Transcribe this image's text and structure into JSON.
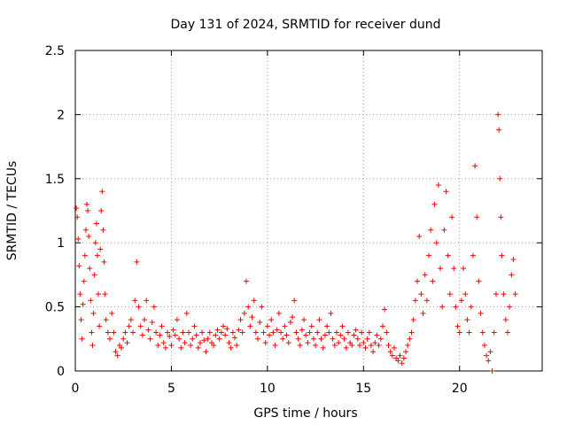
{
  "chart_data": {
    "type": "scatter",
    "title": "Day 131 of 2024, SRMTID for receiver dund",
    "xlabel": "GPS time / hours",
    "ylabel": "SRMTID / TECUs",
    "xlim": [
      0,
      24.3
    ],
    "ylim": [
      0,
      2.5
    ],
    "xticks": [
      0,
      5,
      10,
      15,
      20
    ],
    "yticks": [
      0,
      0.5,
      1,
      1.5,
      2,
      2.5
    ],
    "xtick_labels": [
      "0",
      "5",
      "10",
      "15",
      "20"
    ],
    "ytick_labels": [
      "0",
      "0.5",
      "1",
      "1.5",
      "2",
      "2.5"
    ],
    "grid": true,
    "marker": "plus",
    "series": [
      {
        "name": "SRMTID",
        "color": "#ff0000",
        "points": [
          [
            0.05,
            1.27
          ],
          [
            0.1,
            1.2
          ],
          [
            0.15,
            1.03
          ],
          [
            0.2,
            0.82
          ],
          [
            0.25,
            0.6
          ],
          [
            0.3,
            0.4
          ],
          [
            0.35,
            0.25
          ],
          [
            0.4,
            0.52
          ],
          [
            0.45,
            0.7
          ],
          [
            0.5,
            0.9
          ],
          [
            0.55,
            1.1
          ],
          [
            0.6,
            1.3
          ],
          [
            0.65,
            1.25
          ],
          [
            0.7,
            1.05
          ],
          [
            0.75,
            0.8
          ],
          [
            0.8,
            0.55
          ],
          [
            0.85,
            0.3
          ],
          [
            0.9,
            0.2
          ],
          [
            0.95,
            0.45
          ],
          [
            1.0,
            0.75
          ],
          [
            1.05,
            1.0
          ],
          [
            1.1,
            1.15
          ],
          [
            1.15,
            0.9
          ],
          [
            1.2,
            0.6
          ],
          [
            1.25,
            0.35
          ],
          [
            1.3,
            0.95
          ],
          [
            1.35,
            1.25
          ],
          [
            1.4,
            1.4
          ],
          [
            1.45,
            1.1
          ],
          [
            1.5,
            0.85
          ],
          [
            1.55,
            0.6
          ],
          [
            1.6,
            0.4
          ],
          [
            1.7,
            0.3
          ],
          [
            1.8,
            0.25
          ],
          [
            1.9,
            0.45
          ],
          [
            2.0,
            0.3
          ],
          [
            2.1,
            0.15
          ],
          [
            2.2,
            0.12
          ],
          [
            2.3,
            0.2
          ],
          [
            2.4,
            0.18
          ],
          [
            2.5,
            0.25
          ],
          [
            2.6,
            0.3
          ],
          [
            2.7,
            0.22
          ],
          [
            2.8,
            0.35
          ],
          [
            2.9,
            0.4
          ],
          [
            3.0,
            0.3
          ],
          [
            3.1,
            0.55
          ],
          [
            3.2,
            0.85
          ],
          [
            3.3,
            0.5
          ],
          [
            3.4,
            0.35
          ],
          [
            3.5,
            0.28
          ],
          [
            3.6,
            0.4
          ],
          [
            3.7,
            0.55
          ],
          [
            3.8,
            0.32
          ],
          [
            3.9,
            0.25
          ],
          [
            4.0,
            0.38
          ],
          [
            4.1,
            0.5
          ],
          [
            4.2,
            0.3
          ],
          [
            4.3,
            0.2
          ],
          [
            4.4,
            0.28
          ],
          [
            4.5,
            0.35
          ],
          [
            4.6,
            0.22
          ],
          [
            4.7,
            0.18
          ],
          [
            4.8,
            0.3
          ],
          [
            4.9,
            0.27
          ],
          [
            5.0,
            0.2
          ],
          [
            5.1,
            0.32
          ],
          [
            5.2,
            0.28
          ],
          [
            5.3,
            0.4
          ],
          [
            5.4,
            0.25
          ],
          [
            5.5,
            0.18
          ],
          [
            5.6,
            0.3
          ],
          [
            5.7,
            0.22
          ],
          [
            5.8,
            0.45
          ],
          [
            5.9,
            0.3
          ],
          [
            6.0,
            0.2
          ],
          [
            6.1,
            0.25
          ],
          [
            6.2,
            0.35
          ],
          [
            6.3,
            0.28
          ],
          [
            6.4,
            0.18
          ],
          [
            6.5,
            0.22
          ],
          [
            6.6,
            0.3
          ],
          [
            6.7,
            0.24
          ],
          [
            6.8,
            0.15
          ],
          [
            6.9,
            0.25
          ],
          [
            7.0,
            0.3
          ],
          [
            7.1,
            0.22
          ],
          [
            7.2,
            0.2
          ],
          [
            7.3,
            0.28
          ],
          [
            7.4,
            0.32
          ],
          [
            7.5,
            0.25
          ],
          [
            7.6,
            0.3
          ],
          [
            7.7,
            0.35
          ],
          [
            7.8,
            0.28
          ],
          [
            7.9,
            0.33
          ],
          [
            8.0,
            0.22
          ],
          [
            8.1,
            0.18
          ],
          [
            8.2,
            0.3
          ],
          [
            8.3,
            0.26
          ],
          [
            8.4,
            0.2
          ],
          [
            8.5,
            0.32
          ],
          [
            8.6,
            0.4
          ],
          [
            8.7,
            0.3
          ],
          [
            8.8,
            0.45
          ],
          [
            8.9,
            0.7
          ],
          [
            9.0,
            0.5
          ],
          [
            9.1,
            0.35
          ],
          [
            9.2,
            0.42
          ],
          [
            9.3,
            0.55
          ],
          [
            9.4,
            0.3
          ],
          [
            9.5,
            0.25
          ],
          [
            9.6,
            0.38
          ],
          [
            9.7,
            0.5
          ],
          [
            9.8,
            0.3
          ],
          [
            9.9,
            0.22
          ],
          [
            10.0,
            0.35
          ],
          [
            10.1,
            0.28
          ],
          [
            10.2,
            0.4
          ],
          [
            10.3,
            0.3
          ],
          [
            10.4,
            0.2
          ],
          [
            10.5,
            0.32
          ],
          [
            10.6,
            0.45
          ],
          [
            10.7,
            0.3
          ],
          [
            10.8,
            0.25
          ],
          [
            10.9,
            0.35
          ],
          [
            11.0,
            0.28
          ],
          [
            11.1,
            0.22
          ],
          [
            11.2,
            0.38
          ],
          [
            11.3,
            0.42
          ],
          [
            11.4,
            0.55
          ],
          [
            11.5,
            0.3
          ],
          [
            11.6,
            0.25
          ],
          [
            11.7,
            0.2
          ],
          [
            11.8,
            0.32
          ],
          [
            11.9,
            0.4
          ],
          [
            12.0,
            0.28
          ],
          [
            12.1,
            0.22
          ],
          [
            12.2,
            0.3
          ],
          [
            12.3,
            0.35
          ],
          [
            12.4,
            0.25
          ],
          [
            12.5,
            0.2
          ],
          [
            12.6,
            0.3
          ],
          [
            12.7,
            0.4
          ],
          [
            12.8,
            0.25
          ],
          [
            12.9,
            0.18
          ],
          [
            13.0,
            0.28
          ],
          [
            13.1,
            0.35
          ],
          [
            13.2,
            0.3
          ],
          [
            13.3,
            0.45
          ],
          [
            13.4,
            0.25
          ],
          [
            13.5,
            0.2
          ],
          [
            13.6,
            0.3
          ],
          [
            13.7,
            0.22
          ],
          [
            13.8,
            0.28
          ],
          [
            13.9,
            0.35
          ],
          [
            14.0,
            0.25
          ],
          [
            14.1,
            0.18
          ],
          [
            14.2,
            0.3
          ],
          [
            14.3,
            0.22
          ],
          [
            14.4,
            0.2
          ],
          [
            14.5,
            0.28
          ],
          [
            14.6,
            0.32
          ],
          [
            14.7,
            0.25
          ],
          [
            14.8,
            0.2
          ],
          [
            14.9,
            0.3
          ],
          [
            15.0,
            0.22
          ],
          [
            15.1,
            0.18
          ],
          [
            15.2,
            0.25
          ],
          [
            15.3,
            0.3
          ],
          [
            15.4,
            0.2
          ],
          [
            15.5,
            0.15
          ],
          [
            15.6,
            0.22
          ],
          [
            15.7,
            0.28
          ],
          [
            15.8,
            0.2
          ],
          [
            15.9,
            0.25
          ],
          [
            16.0,
            0.35
          ],
          [
            16.1,
            0.48
          ],
          [
            16.2,
            0.3
          ],
          [
            16.3,
            0.2
          ],
          [
            16.4,
            0.15
          ],
          [
            16.5,
            0.12
          ],
          [
            16.6,
            0.18
          ],
          [
            16.7,
            0.1
          ],
          [
            16.8,
            0.08
          ],
          [
            16.9,
            0.12
          ],
          [
            17.0,
            0.06
          ],
          [
            17.1,
            0.1
          ],
          [
            17.2,
            0.15
          ],
          [
            17.3,
            0.2
          ],
          [
            17.4,
            0.25
          ],
          [
            17.5,
            0.3
          ],
          [
            17.6,
            0.4
          ],
          [
            17.7,
            0.55
          ],
          [
            17.8,
            0.7
          ],
          [
            17.9,
            1.05
          ],
          [
            18.0,
            0.6
          ],
          [
            18.1,
            0.45
          ],
          [
            18.2,
            0.75
          ],
          [
            18.3,
            0.55
          ],
          [
            18.4,
            0.9
          ],
          [
            18.5,
            1.1
          ],
          [
            18.6,
            0.7
          ],
          [
            18.7,
            1.3
          ],
          [
            18.8,
            1.0
          ],
          [
            18.9,
            1.45
          ],
          [
            19.0,
            0.8
          ],
          [
            19.1,
            0.5
          ],
          [
            19.2,
            1.1
          ],
          [
            19.3,
            1.4
          ],
          [
            19.4,
            0.9
          ],
          [
            19.5,
            0.6
          ],
          [
            19.6,
            1.2
          ],
          [
            19.7,
            0.8
          ],
          [
            19.8,
            0.5
          ],
          [
            19.9,
            0.35
          ],
          [
            20.0,
            0.3
          ],
          [
            20.1,
            0.55
          ],
          [
            20.2,
            0.8
          ],
          [
            20.3,
            0.6
          ],
          [
            20.4,
            0.4
          ],
          [
            20.5,
            0.3
          ],
          [
            20.6,
            0.5
          ],
          [
            20.7,
            0.9
          ],
          [
            20.8,
            1.6
          ],
          [
            20.9,
            1.2
          ],
          [
            21.0,
            0.7
          ],
          [
            21.1,
            0.45
          ],
          [
            21.2,
            0.3
          ],
          [
            21.3,
            0.2
          ],
          [
            21.4,
            0.12
          ],
          [
            21.5,
            0.08
          ],
          [
            21.6,
            0.15
          ],
          [
            21.7,
            0.0
          ],
          [
            21.8,
            0.3
          ],
          [
            21.9,
            0.6
          ],
          [
            22.0,
            2.0
          ],
          [
            22.05,
            1.88
          ],
          [
            22.1,
            1.5
          ],
          [
            22.15,
            1.2
          ],
          [
            22.2,
            0.9
          ],
          [
            22.3,
            0.6
          ],
          [
            22.4,
            0.4
          ],
          [
            22.5,
            0.3
          ],
          [
            22.6,
            0.5
          ],
          [
            22.7,
            0.75
          ],
          [
            22.8,
            0.87
          ],
          [
            22.9,
            0.6
          ]
        ]
      }
    ]
  }
}
